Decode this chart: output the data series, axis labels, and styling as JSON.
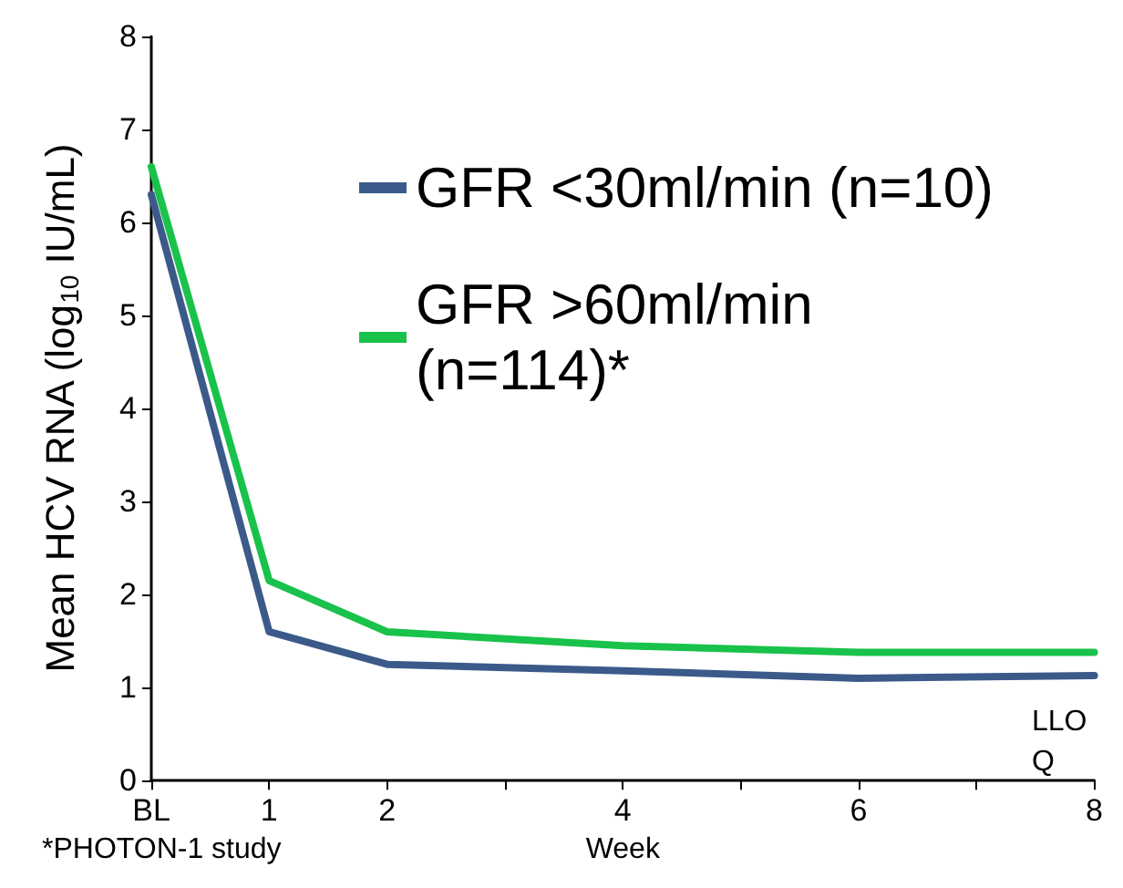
{
  "chart_data": {
    "type": "line",
    "ylabel": "Mean HCV RNA (log$_{10}$ IU/mL)",
    "xlabel": "Week",
    "x": [
      0,
      1,
      2,
      4,
      6,
      8
    ],
    "series": [
      {
        "name": "GFR <30ml/min (n=10)",
        "color": "#3b5a8a",
        "values": [
          6.3,
          1.6,
          1.25,
          1.18,
          1.1,
          1.13
        ]
      },
      {
        "name": "GFR >60ml/min (n=114)*",
        "color": "#19c24a",
        "values": [
          6.6,
          2.15,
          1.6,
          1.45,
          1.38,
          1.38
        ]
      }
    ],
    "xlim": [
      0,
      8
    ],
    "xticks": [
      {
        "value": 0,
        "label": "BL"
      },
      1,
      2,
      {
        "value": 3,
        "label": null
      },
      4,
      {
        "value": 5,
        "label": null
      },
      6,
      {
        "value": 7,
        "label": null
      },
      8
    ],
    "ylim": [
      0,
      8
    ],
    "yticks": [
      0,
      1,
      2,
      3,
      4,
      5,
      6,
      7,
      8
    ],
    "grid": false,
    "legend": "top right",
    "marker": "none",
    "line_style": "solid",
    "annotations": [
      "LLOQ",
      "*PHOTON-1 study"
    ]
  }
}
